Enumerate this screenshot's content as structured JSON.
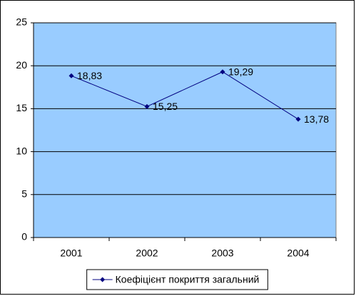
{
  "chart_data": {
    "type": "line",
    "categories": [
      "2001",
      "2002",
      "2003",
      "2004"
    ],
    "series": [
      {
        "name": "Коефіцієнт покриття загальний",
        "color": "#000080",
        "values": [
          18.83,
          15.25,
          19.29,
          13.78
        ],
        "value_labels": [
          "18,83",
          "15,25",
          "19,29",
          "13,78"
        ]
      }
    ],
    "ylim": [
      0,
      25
    ],
    "yticks": [
      0,
      5,
      10,
      15,
      20,
      25
    ],
    "grid": true,
    "legend": "bottom",
    "plot_background": "#99ccff"
  }
}
